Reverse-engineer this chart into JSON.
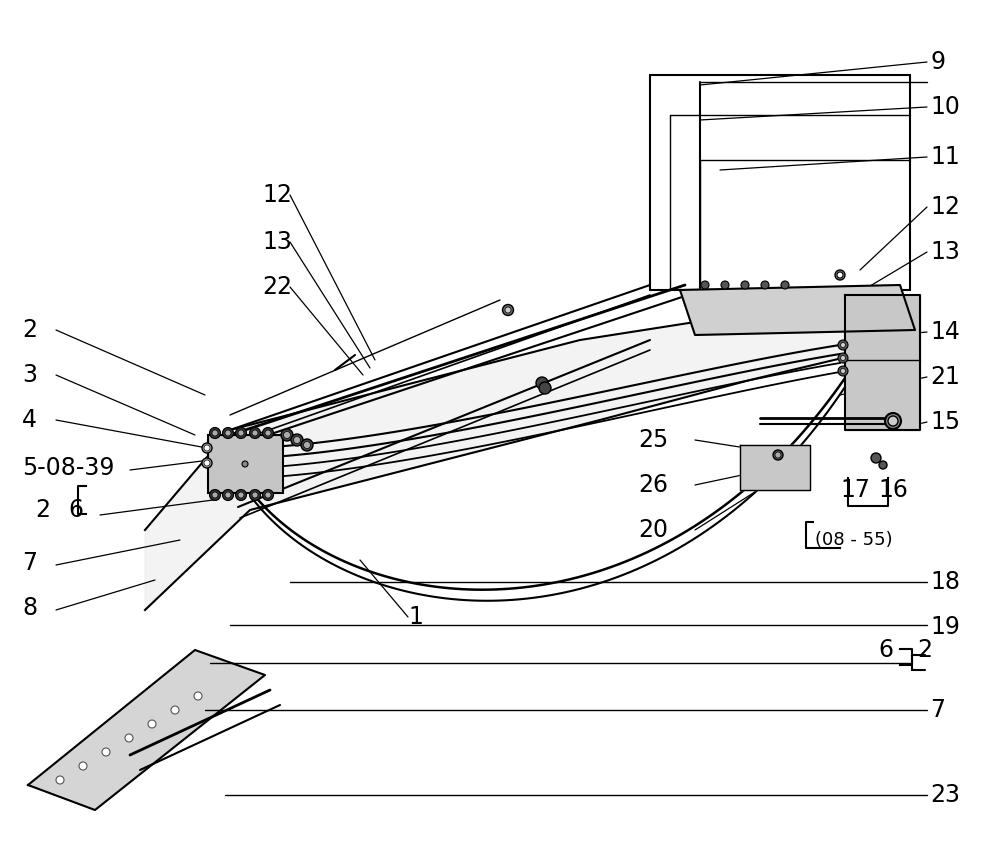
{
  "bg_color": "#ffffff",
  "line_color": "#000000",
  "figsize": [
    10.0,
    8.6
  ],
  "dpi": 100,
  "right_labels": [
    [
      "9",
      930,
      62
    ],
    [
      "10",
      930,
      107
    ],
    [
      "11",
      930,
      157
    ],
    [
      "12",
      930,
      207
    ],
    [
      "13",
      930,
      252
    ],
    [
      "14",
      930,
      332
    ],
    [
      "21",
      930,
      377
    ],
    [
      "15",
      930,
      422
    ]
  ],
  "right_labels_small": [
    [
      "18",
      930,
      582
    ],
    [
      "19",
      930,
      627
    ],
    [
      "7",
      930,
      717
    ],
    [
      "23",
      930,
      795
    ]
  ],
  "left_labels": [
    [
      "2",
      30,
      330
    ],
    [
      "3",
      30,
      375
    ],
    [
      "4",
      30,
      420
    ],
    [
      "8",
      30,
      610
    ]
  ],
  "mid_left_labels": [
    [
      "12",
      262,
      195
    ],
    [
      "13",
      262,
      242
    ],
    [
      "22",
      262,
      287
    ]
  ],
  "center_right_labels": [
    [
      "25",
      650,
      440
    ],
    [
      "26",
      650,
      485
    ],
    [
      "20",
      650,
      530
    ]
  ]
}
